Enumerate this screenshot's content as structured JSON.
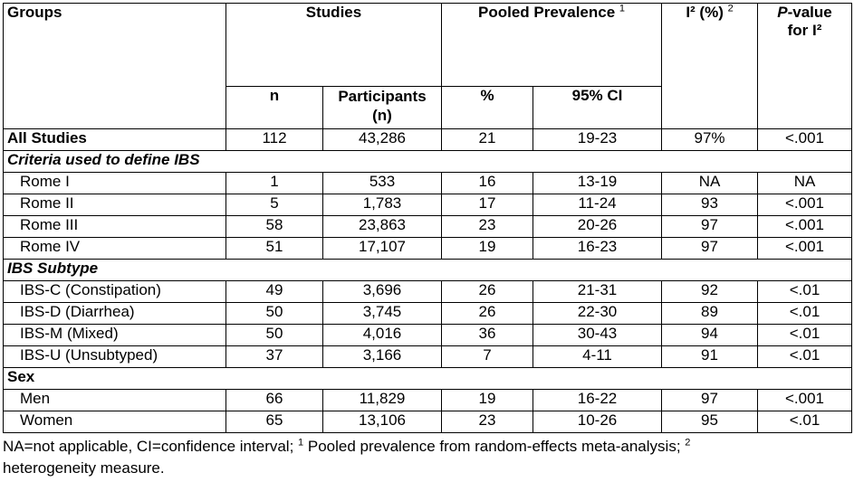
{
  "header": {
    "groups": "Groups",
    "studies": "Studies",
    "pooled_prevalence": "Pooled Prevalence",
    "pooled_sup": "1",
    "i2": "I² (%)",
    "i2_sup": "2",
    "pvalue_italic": "P",
    "pvalue_rest": "-value",
    "pvalue_line2": "for I²",
    "n": "n",
    "participants_1": "Participants",
    "participants_2": "(n)",
    "percent": "%",
    "ci": "95% CI"
  },
  "all_studies": {
    "label": "All Studies",
    "n": "112",
    "participants": "43,286",
    "pct": "21",
    "ci": "19-23",
    "i2": "97%",
    "p": "<.001"
  },
  "sections": [
    {
      "title": "Criteria used to define IBS",
      "rows": [
        {
          "label": "Rome I",
          "n": "1",
          "participants": "533",
          "pct": "16",
          "ci": "13-19",
          "i2": "NA",
          "p": "NA"
        },
        {
          "label": "Rome II",
          "n": "5",
          "participants": "1,783",
          "pct": "17",
          "ci": "11-24",
          "i2": "93",
          "p": "<.001"
        },
        {
          "label": "Rome III",
          "n": "58",
          "participants": "23,863",
          "pct": "23",
          "ci": "20-26",
          "i2": "97",
          "p": "<.001"
        },
        {
          "label": "Rome IV",
          "n": "51",
          "participants": "17,107",
          "pct": "19",
          "ci": "16-23",
          "i2": "97",
          "p": "<.001"
        }
      ]
    },
    {
      "title": "IBS Subtype",
      "rows": [
        {
          "label": "IBS-C (Constipation)",
          "n": "49",
          "participants": "3,696",
          "pct": "26",
          "ci": "21-31",
          "i2": "92",
          "p": "<.01"
        },
        {
          "label": "IBS-D (Diarrhea)",
          "n": "50",
          "participants": "3,745",
          "pct": "26",
          "ci": "22-30",
          "i2": "89",
          "p": "<.01"
        },
        {
          "label": "IBS-M (Mixed)",
          "n": "50",
          "participants": "4,016",
          "pct": "36",
          "ci": "30-43",
          "i2": "94",
          "p": "<.01"
        },
        {
          "label": "IBS-U (Unsubtyped)",
          "n": "37",
          "participants": "3,166",
          "pct": "7",
          "ci": "4-11",
          "i2": "91",
          "p": "<.01"
        }
      ]
    },
    {
      "title": "Sex",
      "rows": [
        {
          "label": "Men",
          "n": "66",
          "participants": "11,829",
          "pct": "19",
          "ci": "16-22",
          "i2": "97",
          "p": "<.001"
        },
        {
          "label": "Women",
          "n": "65",
          "participants": "13,106",
          "pct": "23",
          "ci": "10-26",
          "i2": "95",
          "p": "<.01"
        }
      ]
    }
  ],
  "footnote": {
    "part1": "NA=not applicable, CI=confidence interval; ",
    "sup1": "1",
    "part2": " Pooled prevalence from random-effects meta-analysis; ",
    "sup2": "2",
    "part3": "heterogeneity measure."
  }
}
